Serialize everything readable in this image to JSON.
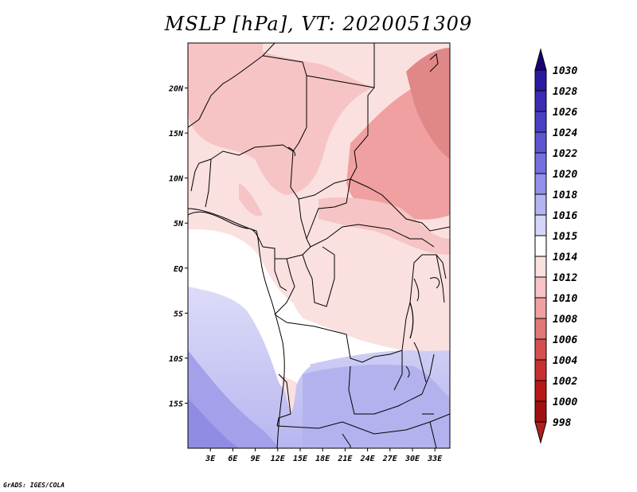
{
  "title": "MSLP [hPa], VT: 2020051309",
  "credit": "GrADS: IGES/COLA",
  "map": {
    "lon_range": [
      0,
      35
    ],
    "lat_range": [
      -20,
      25
    ],
    "y_ticks": [
      {
        "lat": 20,
        "label": "20N"
      },
      {
        "lat": 15,
        "label": "15N"
      },
      {
        "lat": 10,
        "label": "10N"
      },
      {
        "lat": 5,
        "label": "5N"
      },
      {
        "lat": 0,
        "label": "EQ"
      },
      {
        "lat": -5,
        "label": "5S"
      },
      {
        "lat": -10,
        "label": "10S"
      },
      {
        "lat": -15,
        "label": "15S"
      }
    ],
    "x_ticks": [
      {
        "lon": 3,
        "label": "3E"
      },
      {
        "lon": 6,
        "label": "6E"
      },
      {
        "lon": 9,
        "label": "9E"
      },
      {
        "lon": 12,
        "label": "12E"
      },
      {
        "lon": 15,
        "label": "15E"
      },
      {
        "lon": 18,
        "label": "18E"
      },
      {
        "lon": 21,
        "label": "21E"
      },
      {
        "lon": 24,
        "label": "24E"
      },
      {
        "lon": 27,
        "label": "27E"
      },
      {
        "lon": 30,
        "label": "30E"
      },
      {
        "lon": 33,
        "label": "33E"
      }
    ]
  },
  "colorbar": {
    "levels": [
      {
        "label": "1030",
        "color": "#1e0a8c"
      },
      {
        "label": "1028",
        "color": "#2a1aa0"
      },
      {
        "label": "1026",
        "color": "#3a2cb4"
      },
      {
        "label": "1024",
        "color": "#4a40c4"
      },
      {
        "label": "1022",
        "color": "#5c56d2"
      },
      {
        "label": "1020",
        "color": "#7470de"
      },
      {
        "label": "1018",
        "color": "#9290e8"
      },
      {
        "label": "1016",
        "color": "#b4b4f0"
      },
      {
        "label": "1015",
        "color": "#d4d6f8"
      },
      {
        "label": "1014",
        "color": "#ffffff"
      },
      {
        "label": "1012",
        "color": "#fbe0e0"
      },
      {
        "label": "1010",
        "color": "#f6c4c4"
      },
      {
        "label": "1008",
        "color": "#f0a0a0"
      },
      {
        "label": "1006",
        "color": "#e07878"
      },
      {
        "label": "1004",
        "color": "#d45050"
      },
      {
        "label": "1002",
        "color": "#c83030"
      },
      {
        "label": "1000",
        "color": "#b81818"
      },
      {
        "label": "998",
        "color": "#a01010"
      }
    ],
    "top_arrow_color": "#1a0070",
    "bottom_arrow_color": "#b02020"
  }
}
